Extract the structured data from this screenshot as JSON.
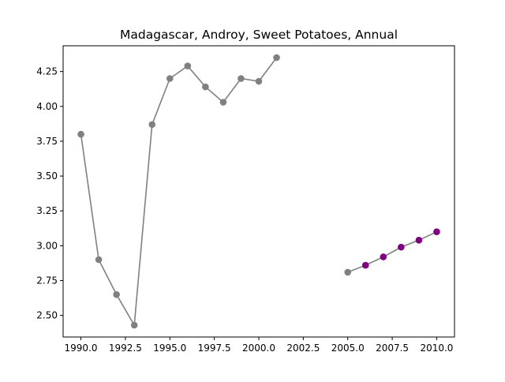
{
  "chart_data": {
    "type": "line",
    "title": "Madagascar, Androy, Sweet Potatoes, Annual",
    "xlabel": "",
    "ylabel": "",
    "xlim": [
      1989.0,
      2011.0
    ],
    "ylim": [
      2.345,
      4.435
    ],
    "x_ticks": [
      "1990.0",
      "1992.5",
      "1995.0",
      "1997.5",
      "2000.0",
      "2002.5",
      "2005.0",
      "2007.5",
      "2010.0"
    ],
    "y_ticks": [
      "2.50",
      "2.75",
      "3.00",
      "3.25",
      "3.50",
      "3.75",
      "4.00",
      "4.25"
    ],
    "grid": false,
    "series": [
      {
        "color": "#808080",
        "points": [
          [
            1990,
            3.8
          ],
          [
            1991,
            2.9
          ],
          [
            1992,
            2.65
          ],
          [
            1993,
            2.43
          ],
          [
            1994,
            3.87
          ],
          [
            1995,
            4.2
          ],
          [
            1996,
            4.29
          ],
          [
            1997,
            4.14
          ],
          [
            1998,
            4.03
          ],
          [
            1999,
            4.2
          ],
          [
            2000,
            4.18
          ],
          [
            2001,
            4.35
          ]
        ]
      },
      {
        "color": "#808080",
        "points": [
          [
            2005,
            2.81
          ],
          [
            2006,
            2.86
          ],
          [
            2007,
            2.92
          ],
          [
            2008,
            2.99
          ],
          [
            2009,
            3.04
          ],
          [
            2010,
            3.1
          ]
        ]
      }
    ],
    "highlight_marker_color": "#800080",
    "highlighted_x": [
      2006,
      2007,
      2008,
      2009,
      2010
    ]
  }
}
